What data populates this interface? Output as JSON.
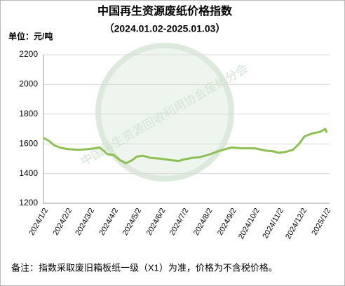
{
  "chart_data": {
    "type": "line",
    "title": "中国再生资源废纸价格指数",
    "subtitle": "（2024.01.02-2025.01.03）",
    "unit_label": "单位：元/吨",
    "watermark": "中国再生资源回收利用协会废纸分会",
    "note": "备注：指数采取废旧箱板纸一级（X1）为准，价格为不含税价格。",
    "x": [
      "2024/1/2",
      "2024/1/9",
      "2024/1/16",
      "2024/1/23",
      "2024/2/2",
      "2024/2/16",
      "2024/3/1",
      "2024/3/15",
      "2024/3/25",
      "2024/4/2",
      "2024/4/10",
      "2024/4/18",
      "2024/4/26",
      "2024/5/2",
      "2024/5/10",
      "2024/5/20",
      "2024/6/2",
      "2024/6/15",
      "2024/6/25",
      "2024/7/2",
      "2024/7/12",
      "2024/7/22",
      "2024/8/2",
      "2024/8/15",
      "2024/8/25",
      "2024/9/2",
      "2024/9/15",
      "2024/9/25",
      "2024/10/2",
      "2024/10/15",
      "2024/10/25",
      "2024/11/2",
      "2024/11/10",
      "2024/11/20",
      "2024/11/28",
      "2024/12/5",
      "2024/12/15",
      "2024/12/25",
      "2025/1/1",
      "2025/1/3"
    ],
    "series": [
      {
        "color": "#8cc152",
        "values": [
          1640,
          1620,
          1590,
          1575,
          1565,
          1560,
          1565,
          1575,
          1530,
          1525,
          1490,
          1470,
          1490,
          1515,
          1520,
          1505,
          1500,
          1490,
          1485,
          1495,
          1505,
          1510,
          1525,
          1550,
          1565,
          1575,
          1570,
          1570,
          1570,
          1555,
          1550,
          1540,
          1545,
          1560,
          1600,
          1650,
          1670,
          1680,
          1700,
          1675
        ]
      }
    ],
    "xticks": [
      "2024/1/2",
      "2024/2/2",
      "2024/3/2",
      "2024/4/2",
      "2024/5/2",
      "2024/6/2",
      "2024/7/2",
      "2024/8/2",
      "2024/9/2",
      "2024/10/2",
      "2024/11/2",
      "2024/12/2",
      "2025/1/2"
    ],
    "ylim": [
      1200,
      2200
    ],
    "yticks": [
      1200,
      1400,
      1600,
      1800,
      2000,
      2200
    ],
    "grid": true
  }
}
